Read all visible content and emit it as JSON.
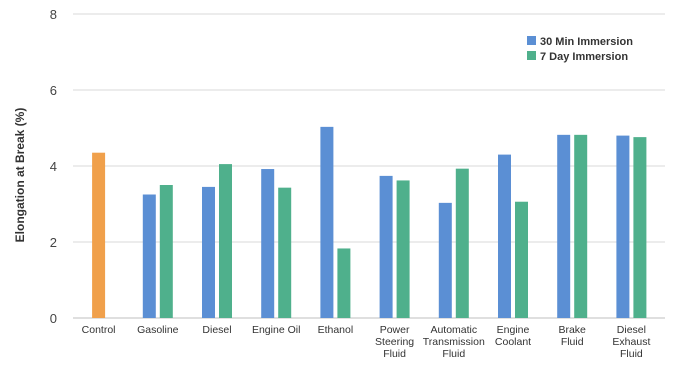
{
  "chart_data": {
    "type": "bar",
    "title": "",
    "xlabel": "",
    "ylabel": "Elongation at Break (%)",
    "ylim": [
      0,
      8
    ],
    "yticks": [
      0,
      2,
      4,
      6,
      8
    ],
    "grid": true,
    "legend_position": "top-right",
    "categories": [
      [
        "Control"
      ],
      [
        "Gasoline"
      ],
      [
        "Diesel"
      ],
      [
        "Engine Oil"
      ],
      [
        "Ethanol"
      ],
      [
        "Power",
        "Steering",
        "Fluid"
      ],
      [
        "Automatic",
        "Transmission",
        "Fluid"
      ],
      [
        "Engine",
        "Coolant"
      ],
      [
        "Brake",
        "Fluid"
      ],
      [
        "Diesel",
        "Exhaust",
        "Fluid"
      ]
    ],
    "control": {
      "value": 4.35,
      "color": "#f0a04b"
    },
    "series": [
      {
        "name": "30 Min Immersion",
        "color": "#5b8fd4",
        "values": [
          null,
          3.25,
          3.45,
          3.92,
          5.03,
          3.74,
          3.03,
          4.3,
          4.82,
          4.8
        ]
      },
      {
        "name": "7 Day Immersion",
        "color": "#4fb08c",
        "values": [
          null,
          3.5,
          4.05,
          3.43,
          1.83,
          3.62,
          3.93,
          3.06,
          4.82,
          4.76
        ]
      }
    ]
  }
}
